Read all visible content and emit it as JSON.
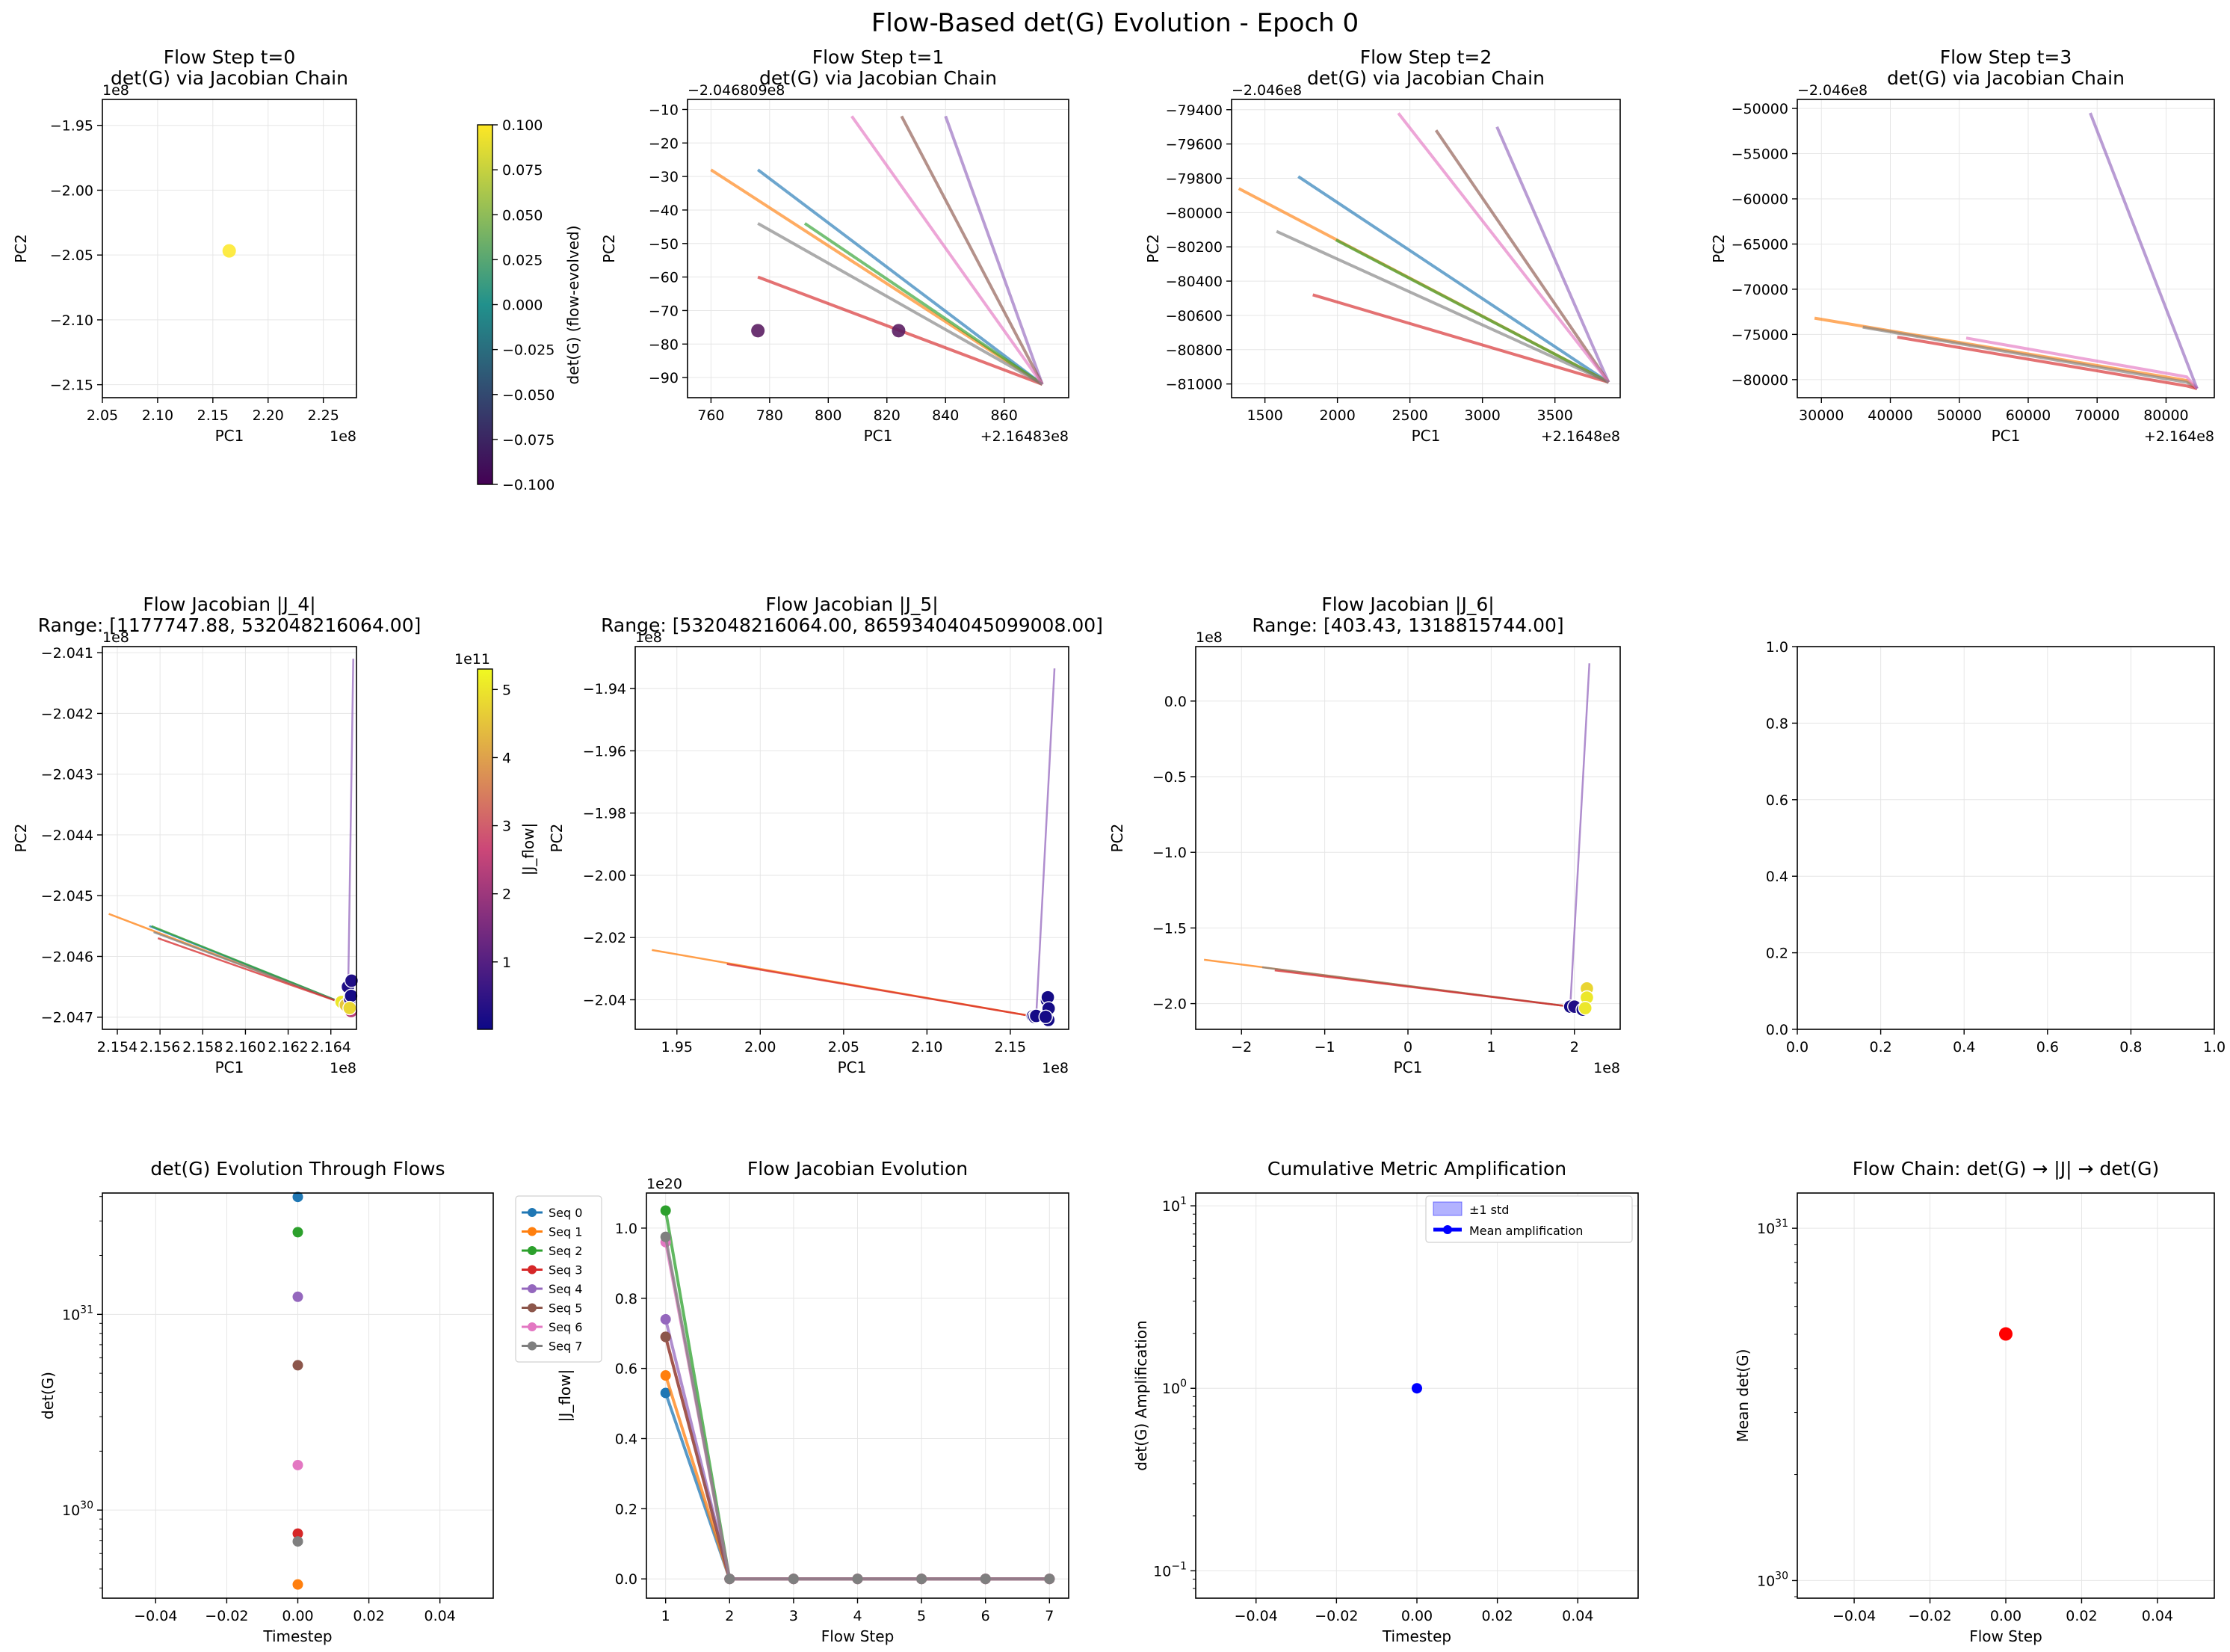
{
  "suptitle": "Flow-Based det(G) Evolution - Epoch 0",
  "colors": {
    "seq": [
      "#1f77b4",
      "#ff7f0e",
      "#2ca02c",
      "#d62728",
      "#9467bd",
      "#8c564b",
      "#e377c2",
      "#7f7f7f"
    ],
    "viridis_top": "#fde725",
    "viridis_mid": "#21918c",
    "viridis_bottom": "#440154",
    "plasma_top": "#f0f921",
    "plasma_mid": "#cc4778",
    "plasma_bottom": "#0d0887",
    "mean_amp": "#0000ff",
    "chain": "#ff0000"
  },
  "chart_data": [
    {
      "type": "scatter",
      "title": [
        "Flow Step t=0",
        "det(G) via Jacobian Chain"
      ],
      "xlabel": "PC1",
      "ylabel": "PC2",
      "xlim": [
        2.05,
        2.28
      ],
      "ylim": [
        -2.16,
        -1.93
      ],
      "xticks": [
        "2.05",
        "2.10",
        "2.15",
        "2.20",
        "2.25"
      ],
      "yticks": [
        "−1.95",
        "−2.00",
        "−2.05",
        "−2.10",
        "−2.15"
      ],
      "xoffset": "1e8",
      "yoffset": "1e8",
      "points": [
        {
          "x": 2.1648,
          "y": -2.0468,
          "color": "#fde725"
        }
      ],
      "colorbar": {
        "label": "det(G) (flow-evolved)",
        "ticks": [
          "0.100",
          "0.075",
          "0.050",
          "0.025",
          "0.000",
          "−0.025",
          "−0.050",
          "−0.075",
          "−0.100"
        ],
        "min": -0.1,
        "max": 0.1
      }
    },
    {
      "type": "line",
      "title": [
        "Flow Step t=1",
        "det(G) via Jacobian Chain"
      ],
      "xlabel": "PC1",
      "ylabel": "PC2",
      "xlim": [
        752,
        882
      ],
      "ylim": [
        -96,
        -7
      ],
      "xticks": [
        "760",
        "780",
        "800",
        "820",
        "840",
        "860"
      ],
      "yticks": [
        "−10",
        "−20",
        "−30",
        "−40",
        "−50",
        "−60",
        "−70",
        "−80",
        "−90"
      ],
      "xoffset": "+2.16483e8",
      "yoffset": "−2.046809e8",
      "end": [
        873,
        -92
      ],
      "segments": [
        {
          "seq": 0,
          "x0": 776,
          "y0": -28
        },
        {
          "seq": 1,
          "x0": 760,
          "y0": -28
        },
        {
          "seq": 2,
          "x0": 792,
          "y0": -44
        },
        {
          "seq": 3,
          "x0": 776,
          "y0": -60
        },
        {
          "seq": 4,
          "x0": 840,
          "y0": -12
        },
        {
          "seq": 5,
          "x0": 825,
          "y0": -12
        },
        {
          "seq": 6,
          "x0": 808,
          "y0": -12
        },
        {
          "seq": 7,
          "x0": 776,
          "y0": -44
        }
      ],
      "points": [
        {
          "x": 776,
          "y": -76
        },
        {
          "x": 824,
          "y": -76
        }
      ]
    },
    {
      "type": "line",
      "title": [
        "Flow Step t=2",
        "det(G) via Jacobian Chain"
      ],
      "xlabel": "PC1",
      "ylabel": "PC2",
      "xlim": [
        1270,
        3950
      ],
      "ylim": [
        -81080,
        -79340
      ],
      "xticks": [
        "1500",
        "2000",
        "2500",
        "3000",
        "3500"
      ],
      "yticks": [
        "−79400",
        "−79600",
        "−79800",
        "−80000",
        "−80200",
        "−80400",
        "−80600",
        "−80800",
        "−81000"
      ],
      "xoffset": "+2.1648e8",
      "yoffset": "−2.046e8",
      "end": [
        3870,
        -80990
      ],
      "segments": [
        {
          "seq": 0,
          "x0": 1730,
          "y0": -79790
        },
        {
          "seq": 1,
          "x0": 1320,
          "y0": -79860
        },
        {
          "seq": 2,
          "x0": 1990,
          "y0": -80160
        },
        {
          "seq": 3,
          "x0": 1830,
          "y0": -80480
        },
        {
          "seq": 4,
          "x0": 3100,
          "y0": -79500
        },
        {
          "seq": 5,
          "x0": 2680,
          "y0": -79520
        },
        {
          "seq": 6,
          "x0": 2420,
          "y0": -79420
        },
        {
          "seq": 7,
          "x0": 1580,
          "y0": -80110
        }
      ]
    },
    {
      "type": "line",
      "title": [
        "Flow Step t=3",
        "det(G) via Jacobian Chain"
      ],
      "xlabel": "PC1",
      "ylabel": "PC2",
      "xlim": [
        26500,
        87000
      ],
      "ylim": [
        -82000,
        -49000
      ],
      "xticks": [
        "30000",
        "40000",
        "50000",
        "60000",
        "70000",
        "80000"
      ],
      "yticks": [
        "−50000",
        "−55000",
        "−60000",
        "−65000",
        "−70000",
        "−75000",
        "−80000"
      ],
      "xoffset": "+2.164e8",
      "yoffset": "−2.046e8",
      "end": [
        84500,
        -81000
      ],
      "segments": [
        {
          "seq": 1,
          "x0": 29000,
          "y0": -73200,
          "xm": 83000,
          "ym": -80100
        },
        {
          "seq": 7,
          "x0": 36000,
          "y0": -74200,
          "xm": 83000,
          "ym": -80300
        },
        {
          "seq": 3,
          "x0": 41000,
          "y0": -75300,
          "xm": 83000,
          "ym": -80700
        },
        {
          "seq": 6,
          "x0": 51000,
          "y0": -75400,
          "xm": 83000,
          "ym": -79700
        },
        {
          "seq": 4,
          "x0": 69000,
          "y0": -50500
        }
      ]
    },
    {
      "type": "line",
      "title": [
        "Flow Jacobian |J_4|",
        "Range: [1177747.88, 532048216064.00]"
      ],
      "xlabel": "PC1",
      "ylabel": "PC2",
      "xlim": [
        2.1533,
        2.1652
      ],
      "ylim": [
        -2.0472,
        -2.0409
      ],
      "xticks": [
        "2.154",
        "2.156",
        "2.158",
        "2.160",
        "2.162",
        "2.164"
      ],
      "yticks": [
        "−2.041",
        "−2.042",
        "−2.043",
        "−2.044",
        "−2.045",
        "−2.046",
        "−2.047"
      ],
      "xoffset": "1e8",
      "yoffset": "1e8",
      "end": [
        2.1648,
        -2.0468
      ],
      "segments": [
        {
          "seq": 1,
          "x0": 2.1536,
          "y0": -2.0453
        },
        {
          "seq": 0,
          "x0": 2.1555,
          "y0": -2.0455
        },
        {
          "seq": 2,
          "x0": 2.1556,
          "y0": -2.0455
        },
        {
          "seq": 7,
          "x0": 2.1557,
          "y0": -2.0456
        },
        {
          "seq": 3,
          "x0": 2.1559,
          "y0": -2.0457
        },
        {
          "seq": 4,
          "x0": 2.16505,
          "y0": -2.0411
        }
      ],
      "points": [
        {
          "x": 2.1645,
          "y": -2.04675,
          "c": 0.95
        },
        {
          "x": 2.1647,
          "y": -2.0468,
          "c": 0.85
        },
        {
          "x": 2.1648,
          "y": -2.0465,
          "c": 0.05
        },
        {
          "x": 2.1649,
          "y": -2.0467,
          "c": 0.1
        },
        {
          "x": 2.16495,
          "y": -2.04665,
          "c": 0.02
        },
        {
          "x": 2.16497,
          "y": -2.0464,
          "c": 0.05
        },
        {
          "x": 2.16495,
          "y": -2.0469,
          "c": 0.45
        },
        {
          "x": 2.16488,
          "y": -2.04685,
          "c": 0.9
        }
      ],
      "colorbar": {
        "label": "|J_flow|",
        "offset": "1e11",
        "ticks": [
          "5",
          "4",
          "3",
          "2",
          "1"
        ],
        "min": 0.01,
        "max": 5.3
      }
    },
    {
      "type": "line",
      "title": [
        "Flow Jacobian |J_5|",
        "Range: [532048216064.00, 86593404045099008.00]"
      ],
      "xlabel": "PC1",
      "ylabel": "PC2",
      "xlim": [
        1.925,
        2.185
      ],
      "ylim": [
        -2.0495,
        -1.9265
      ],
      "xticks": [
        "1.95",
        "2.00",
        "2.05",
        "2.10",
        "2.15"
      ],
      "yticks": [
        "−1.94",
        "−1.96",
        "−1.98",
        "−2.00",
        "−2.02",
        "−2.04"
      ],
      "xoffset": "1e8",
      "yoffset": "1e8",
      "end": [
        2.1655,
        -2.0455
      ],
      "segments": [
        {
          "seq": 1,
          "x0": 1.935,
          "y0": -2.024
        },
        {
          "seq": 3,
          "x0": 1.98,
          "y0": -2.0285
        },
        {
          "seq": 4,
          "x0": 2.1765,
          "y0": -1.9335
        }
      ],
      "points": [
        {
          "x": 2.1635,
          "y": -2.0453,
          "c": 0.02
        },
        {
          "x": 2.1645,
          "y": -2.0455,
          "c": 0.02
        },
        {
          "x": 2.1655,
          "y": -2.0452,
          "c": 0.02
        },
        {
          "x": 2.172,
          "y": -2.0402,
          "c": 0.02
        },
        {
          "x": 2.1725,
          "y": -2.0392,
          "c": 0.02
        },
        {
          "x": 2.173,
          "y": -2.0428,
          "c": 0.02
        },
        {
          "x": 2.1728,
          "y": -2.0465,
          "c": 0.02
        },
        {
          "x": 2.1712,
          "y": -2.0455,
          "c": 0.02
        }
      ]
    },
    {
      "type": "line",
      "title": [
        "Flow Jacobian |J_6|",
        "Range: [403.43, 1318815744.00]"
      ],
      "xlabel": "PC1",
      "ylabel": "PC2",
      "xlim": [
        -2.55,
        2.55
      ],
      "ylim": [
        -2.17,
        0.36
      ],
      "xticks": [
        "−2",
        "−1",
        "0",
        "1",
        "2"
      ],
      "yticks": [
        "0.0",
        "−0.5",
        "−1.0",
        "−1.5",
        "−2.0"
      ],
      "xoffset": "1e8",
      "yoffset": "1e8",
      "end": [
        1.95,
        -2.02
      ],
      "segments": [
        {
          "seq": 1,
          "x0": -2.45,
          "y0": -1.71
        },
        {
          "seq": 7,
          "x0": -1.75,
          "y0": -1.76
        },
        {
          "seq": 3,
          "x0": -1.6,
          "y0": -1.78
        },
        {
          "seq": 4,
          "x0": 2.18,
          "y0": 0.25
        }
      ],
      "points": [
        {
          "x": 1.95,
          "y": -2.02,
          "c": 0.02
        },
        {
          "x": 2.0,
          "y": -2.02,
          "c": 0.05
        },
        {
          "x": 2.1,
          "y": -2.04,
          "c": 0.02
        },
        {
          "x": 2.15,
          "y": -1.9,
          "c": 0.9
        },
        {
          "x": 2.15,
          "y": -1.96,
          "c": 0.95
        },
        {
          "x": 2.13,
          "y": -2.03,
          "c": 0.95
        }
      ]
    },
    {
      "type": "empty",
      "xlim": [
        0,
        1
      ],
      "ylim": [
        0,
        1
      ],
      "xticks": [
        "0.0",
        "0.2",
        "0.4",
        "0.6",
        "0.8",
        "1.0"
      ],
      "yticks": [
        "0.0",
        "0.2",
        "0.4",
        "0.6",
        "0.8",
        "1.0"
      ]
    },
    {
      "type": "scatter",
      "title": [
        "det(G) Evolution Through Flows"
      ],
      "xlabel": "Timestep",
      "ylabel": "det(G)",
      "yscale": "log",
      "xlim": [
        -0.055,
        0.055
      ],
      "ylim_log10": [
        29.55,
        31.62
      ],
      "xticks": [
        "−0.04",
        "−0.02",
        "0.00",
        "0.02",
        "0.04"
      ],
      "yticks": [
        {
          "label": "10",
          "exp": "31",
          "v": 31
        },
        {
          "label": "10",
          "exp": "30",
          "v": 30
        }
      ],
      "legend": [
        "Seq 0",
        "Seq 1",
        "Seq 2",
        "Seq 3",
        "Seq 4",
        "Seq 5",
        "Seq 6",
        "Seq 7"
      ],
      "points_log10": [
        31.6,
        29.62,
        31.42,
        29.88,
        31.09,
        30.74,
        30.23,
        29.84
      ]
    },
    {
      "type": "line",
      "title": [
        "Flow Jacobian Evolution"
      ],
      "xlabel": "Flow Step",
      "ylabel": "|J_flow|",
      "xlim": [
        0.7,
        7.3
      ],
      "ylim": [
        -0.055,
        1.1
      ],
      "yoffset": "1e20",
      "xticks": [
        "1",
        "2",
        "3",
        "4",
        "5",
        "6",
        "7"
      ],
      "yticks": [
        "1.0",
        "0.8",
        "0.6",
        "0.4",
        "0.2",
        "0.0"
      ],
      "x": [
        1,
        2,
        3,
        4,
        5,
        6,
        7
      ],
      "series": [
        {
          "name": "Seq 0",
          "values": [
            0.53,
            0,
            0,
            0,
            0,
            0,
            0
          ]
        },
        {
          "name": "Seq 1",
          "values": [
            0.58,
            0,
            0,
            0,
            0,
            0,
            0
          ]
        },
        {
          "name": "Seq 2",
          "values": [
            1.05,
            0,
            0,
            0,
            0,
            0,
            0
          ]
        },
        {
          "name": "Seq 3",
          "values": [
            0.69,
            0,
            0,
            0,
            0,
            0,
            0
          ]
        },
        {
          "name": "Seq 4",
          "values": [
            0.74,
            0,
            0,
            0,
            0,
            0,
            0
          ]
        },
        {
          "name": "Seq 5",
          "values": [
            0.69,
            0,
            0,
            0,
            0,
            0,
            0
          ]
        },
        {
          "name": "Seq 6",
          "values": [
            0.96,
            0,
            0,
            0,
            0,
            0,
            0
          ]
        },
        {
          "name": "Seq 7",
          "values": [
            0.975,
            0,
            0,
            0,
            0,
            0,
            0
          ]
        }
      ]
    },
    {
      "type": "line",
      "title": [
        "Cumulative Metric Amplification"
      ],
      "xlabel": "Timestep",
      "ylabel": "det(G) Amplification",
      "yscale": "log",
      "xlim": [
        -0.055,
        0.055
      ],
      "ylim_log10": [
        -1.15,
        1.07
      ],
      "xticks": [
        "−0.04",
        "−0.02",
        "0.00",
        "0.02",
        "0.04"
      ],
      "yticks": [
        {
          "label": "10",
          "exp": "1",
          "v": 1
        },
        {
          "label": "10",
          "exp": "0",
          "v": 0
        },
        {
          "label": "10",
          "exp": "−1",
          "v": -1
        }
      ],
      "legend": [
        "±1 std",
        "Mean amplification"
      ],
      "x": [
        0
      ],
      "values": [
        1.0
      ]
    },
    {
      "type": "scatter",
      "title": [
        "Flow Chain: det(G) → |J| → det(G)"
      ],
      "xlabel": "Flow Step",
      "ylabel": "Mean det(G)",
      "yscale": "log",
      "xlim": [
        -0.055,
        0.055
      ],
      "ylim_log10": [
        29.95,
        31.1
      ],
      "xticks": [
        "−0.04",
        "−0.02",
        "0.00",
        "0.02",
        "0.04"
      ],
      "yticks": [
        {
          "label": "10",
          "exp": "31",
          "v": 31
        },
        {
          "label": "10",
          "exp": "30",
          "v": 30
        }
      ],
      "x": [
        0
      ],
      "values_log10": [
        30.7
      ]
    }
  ]
}
